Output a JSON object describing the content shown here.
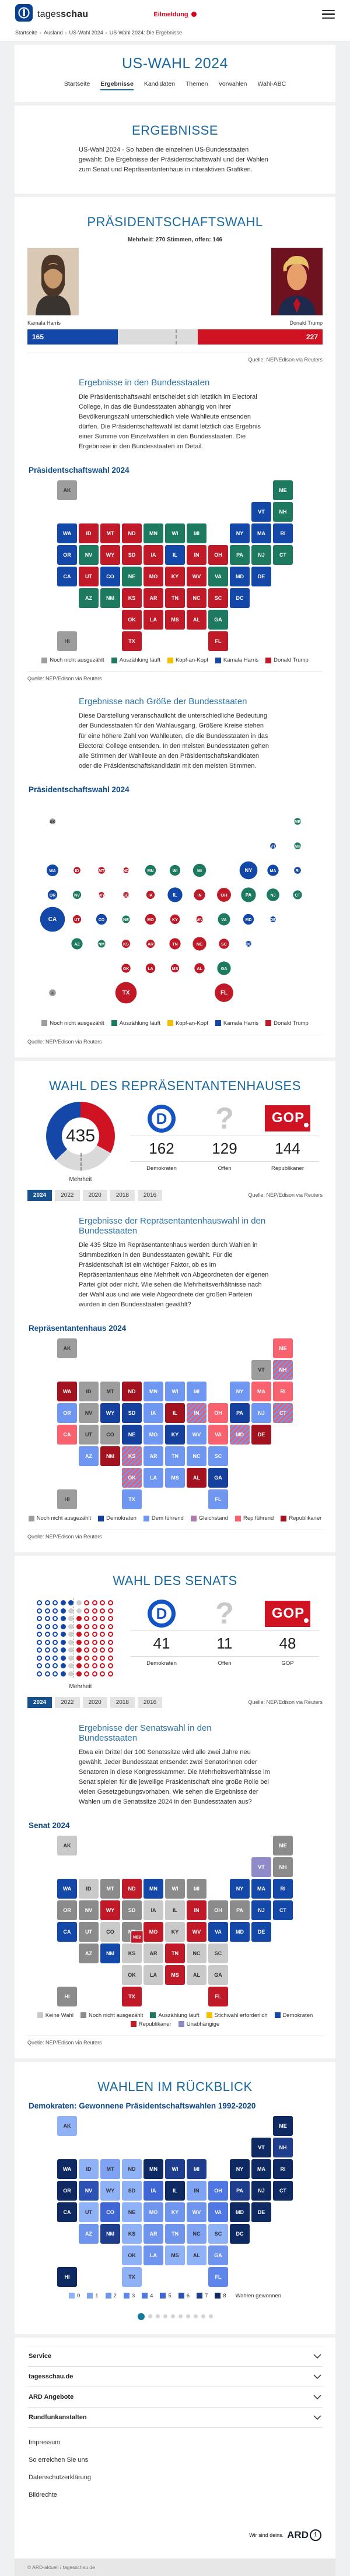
{
  "source": "Quelle: NEP/Edison via Reuters",
  "header": {
    "brand_name": "tagesschau",
    "alert_label": "Eilmeldung",
    "breadcrumb": [
      "Startseite",
      "Ausland",
      "US-Wahl 2024",
      "US-Wahl 2024: Die Ergebnisse"
    ],
    "page_title": "US-WAHL 2024",
    "tabs": [
      {
        "label": "Startseite",
        "active": false
      },
      {
        "label": "Ergebnisse",
        "active": true
      },
      {
        "label": "Kandidaten",
        "active": false
      },
      {
        "label": "Themen",
        "active": false
      },
      {
        "label": "Vorwahlen",
        "active": false
      },
      {
        "label": "Wahl-ABC",
        "active": false
      }
    ]
  },
  "intro": {
    "title": "ERGEBNISSE",
    "text": "US-Wahl 2024 - So haben die einzelnen US-Bundesstaaten gewählt: Die Ergebnisse der Präsidentschaftswahl und der Wahlen zum Senat und Repräsentantenhaus in interaktiven Grafiken."
  },
  "president": {
    "title": "PRÄSIDENTSCHAFTSWAHL",
    "subtitle": "Mehrheit: 270 Stimmen, offen: 146",
    "candidate_left": "Kamala Harris",
    "candidate_right": "Donald Trump",
    "states_section": {
      "heading": "Ergebnisse in den Bundesstaaten",
      "text": "Die Präsidentschaftswahl entscheidet sich letztlich im Electoral College, in das die Bundesstaaten abhängig von ihrer Bevölkerungszahl unterschiedlich viele Wahlleute entsenden dürfen. Die Präsidentschaftswahl ist damit letztlich das Ergebnis einer Summe von Einzelwahlen in den Bundesstaaten. Die Ergebnisse in den Bundesstaaten im Detail.",
      "map_title": "Präsidentschaftswahl 2024"
    },
    "size_section": {
      "heading": "Ergebnisse nach Größe der Bundesstaaten",
      "text": "Diese Darstellung veranschaulicht die unterschiedliche Bedeutung der Bundesstaaten für den Wahlausgang. Größere Kreise stehen für eine höhere Zahl von Wahlleuten, die die Bundesstaaten in das Electoral College entsenden. In den meisten Bundesstaaten gehen alle Stimmen der Wahlleute an den Präsidentschaftskandidaten oder die Präsidentschaftskandidatin mit den meisten Stimmen.",
      "map_title": "Präsidentschaftswahl 2024"
    }
  },
  "house": {
    "title": "WAHL DES REPRÄSENTANTENHAUSES",
    "donut_center": "435",
    "donut_label": "Mehrheit",
    "stats": [
      {
        "value": "162",
        "label": "Demokraten",
        "logo": "dem"
      },
      {
        "value": "129",
        "label": "Offen",
        "logo": "open"
      },
      {
        "value": "144",
        "label": "Republikaner",
        "logo": "gop"
      }
    ],
    "years": [
      "2024",
      "2022",
      "2020",
      "2018",
      "2016"
    ],
    "active_year": "2024",
    "states_section": {
      "heading": "Ergebnisse der Repräsentantenhauswahl in den Bundesstaaten",
      "text": "Die 435 Sitze im Repräsentantenhaus werden durch Wahlen in Stimmbezirken in den Bundesstaaten gewählt. Für die Präsidentschaft ist ein wichtiger Faktor, ob es im Repräsentantenhaus eine Mehrheit von Abgeordneten der eigenen Partei gibt oder nicht. Wie sehen die Mehrheitsverhältnisse nach der Wahl aus und wie viele Abgeordnete der großen Parteien wurden in den Bundesstaaten gewählt?",
      "map_title": "Repräsentantenhaus 2024"
    }
  },
  "senate": {
    "title": "WAHL DES SENATS",
    "majority_label": "Mehrheit",
    "stats": [
      {
        "value": "41",
        "label": "Demokraten",
        "logo": "dem"
      },
      {
        "value": "11",
        "label": "Offen",
        "logo": "open"
      },
      {
        "value": "48",
        "label": "GOP",
        "logo": "gop"
      }
    ],
    "years": [
      "2024",
      "2022",
      "2020",
      "2018",
      "2016"
    ],
    "active_year": "2024",
    "states_section": {
      "heading": "Ergebnisse der Senatswahl in den Bundesstaaten",
      "text": "Etwa ein Drittel der 100 Senatssitze wird alle zwei Jahre neu gewählt. Jeder Bundesstaat entsendet zwei Senatorinnen oder Senatoren in diese Kongresskammer. Die Mehrheitsverhältnisse im Senat spielen für die jeweilige Präsidentschaft eine große Rolle bei vielen Gesetzgebungsvorhaben. Wie sehen die Ergebnisse der Wahlen um die Senatssitze 2024 in den Bundesstaaten aus?",
      "map_title": "Senat 2024"
    }
  },
  "retro": {
    "title": "WAHLEN IM RÜCKBLICK",
    "map_title": "Demokraten: Gewonnene Präsidentschaftswahlen 1992-2020",
    "legend_suffix": "Wahlen gewonnen",
    "carousel_count": 10,
    "carousel_active": 0
  },
  "footer": {
    "accordions": [
      "Service",
      "tagesschau.de",
      "ARD Angebote",
      "Rundfunkanstalten"
    ],
    "links": [
      "Impressum",
      "So erreichen Sie uns",
      "Datenschutzerklärung",
      "Bildrechte"
    ],
    "slogan": "Wir sind deins.",
    "brand": "ARD",
    "copyright": "© ARD-aktuell / tagesschau.de"
  },
  "us_tile_grid": {
    "AK": [
      0,
      0
    ],
    "ME": [
      10,
      0
    ],
    "VT": [
      9,
      1
    ],
    "NH": [
      10,
      1
    ],
    "WA": [
      0,
      2
    ],
    "ID": [
      1,
      2
    ],
    "MT": [
      2,
      2
    ],
    "ND": [
      3,
      2
    ],
    "MN": [
      4,
      2
    ],
    "WI": [
      5,
      2
    ],
    "MI": [
      6,
      2
    ],
    "NY": [
      8,
      2
    ],
    "MA": [
      9,
      2
    ],
    "RI": [
      10,
      2
    ],
    "OR": [
      0,
      3
    ],
    "NV": [
      1,
      3
    ],
    "WY": [
      2,
      3
    ],
    "SD": [
      3,
      3
    ],
    "IA": [
      4,
      3
    ],
    "IL": [
      5,
      3
    ],
    "IN": [
      6,
      3
    ],
    "OH": [
      7,
      3
    ],
    "PA": [
      8,
      3
    ],
    "NJ": [
      9,
      3
    ],
    "CT": [
      10,
      3
    ],
    "CA": [
      0,
      4
    ],
    "UT": [
      1,
      4
    ],
    "CO": [
      2,
      4
    ],
    "NE": [
      3,
      4
    ],
    "MO": [
      4,
      4
    ],
    "KY": [
      5,
      4
    ],
    "WV": [
      6,
      4
    ],
    "VA": [
      7,
      4
    ],
    "MD": [
      8,
      4
    ],
    "DE": [
      9,
      4
    ],
    "AZ": [
      1,
      5
    ],
    "NM": [
      2,
      5
    ],
    "KS": [
      3,
      5
    ],
    "AR": [
      4,
      5
    ],
    "TN": [
      5,
      5
    ],
    "NC": [
      6,
      5
    ],
    "SC": [
      7,
      5
    ],
    "DC": [
      8,
      5
    ],
    "OK": [
      3,
      6
    ],
    "LA": [
      4,
      6
    ],
    "MS": [
      5,
      6
    ],
    "AL": [
      6,
      6
    ],
    "GA": [
      7,
      6
    ],
    "HI": [
      0,
      7
    ],
    "TX": [
      3,
      7
    ],
    "FL": [
      7,
      7
    ]
  },
  "chart_data": [
    {
      "id": "president_bar",
      "type": "bar",
      "title": "PRÄSIDENTSCHAFTSWAHL",
      "total": 538,
      "majority": 270,
      "open": 146,
      "series": [
        {
          "name": "Kamala Harris",
          "value": 165,
          "color": "#1347a8"
        },
        {
          "name": "offen",
          "value": 146,
          "color": "#dcdcdc"
        },
        {
          "name": "Donald Trump",
          "value": 227,
          "color": "#cf1322"
        }
      ]
    },
    {
      "id": "president_map",
      "type": "choropleth_tile",
      "title": "Präsidentschaftswahl 2024",
      "categories": {
        "not_counted": {
          "label": "Noch nicht ausgezählt",
          "color": "#9d9d9d"
        },
        "counting": {
          "label": "Auszählung läuft",
          "color": "#1d7a60"
        },
        "tossup": {
          "label": "Kopf-an-Kopf",
          "color": "#f3c000"
        },
        "harris": {
          "label": "Kamala Harris",
          "color": "#1347a8"
        },
        "trump": {
          "label": "Donald Trump",
          "color": "#c01a28"
        }
      },
      "legend_order": [
        "not_counted",
        "counting",
        "tossup",
        "harris",
        "trump"
      ],
      "states": {
        "AK": "not_counted",
        "HI": "not_counted",
        "WA": "harris",
        "OR": "harris",
        "CA": "harris",
        "CO": "harris",
        "IL": "harris",
        "NY": "harris",
        "VT": "harris",
        "MA": "harris",
        "RI": "harris",
        "DE": "harris",
        "MD": "harris",
        "DC": "harris",
        "NV": "counting",
        "AZ": "counting",
        "NM": "counting",
        "NE": "counting",
        "MN": "counting",
        "WI": "counting",
        "MI": "counting",
        "PA": "counting",
        "GA": "counting",
        "VA": "counting",
        "ME": "counting",
        "NH": "counting",
        "CT": "counting",
        "NJ": "counting",
        "ID": "trump",
        "MT": "trump",
        "WY": "trump",
        "ND": "trump",
        "SD": "trump",
        "UT": "trump",
        "KS": "trump",
        "OK": "trump",
        "TX": "trump",
        "IA": "trump",
        "MO": "trump",
        "AR": "trump",
        "LA": "trump",
        "IN": "trump",
        "OH": "trump",
        "KY": "trump",
        "TN": "trump",
        "MS": "trump",
        "AL": "trump",
        "FL": "trump",
        "SC": "trump",
        "NC": "trump",
        "WV": "trump"
      }
    },
    {
      "id": "president_bubbles",
      "type": "bubble",
      "title": "Präsidentschaftswahl 2024",
      "uses_states_of": "president_map",
      "size_meaning": "Wahlleute (Electoral College)",
      "electoral_votes": {
        "AL": 9,
        "AK": 3,
        "AZ": 11,
        "AR": 6,
        "CA": 54,
        "CO": 10,
        "CT": 7,
        "DE": 3,
        "DC": 3,
        "FL": 30,
        "GA": 16,
        "HI": 4,
        "ID": 4,
        "IL": 19,
        "IN": 11,
        "IA": 6,
        "KS": 6,
        "KY": 8,
        "LA": 8,
        "ME": 4,
        "MD": 10,
        "MA": 11,
        "MI": 15,
        "MN": 10,
        "MS": 6,
        "MO": 10,
        "MT": 4,
        "NE": 5,
        "NV": 6,
        "NH": 4,
        "NJ": 14,
        "NM": 5,
        "NY": 28,
        "NC": 16,
        "ND": 3,
        "OH": 17,
        "OK": 7,
        "OR": 8,
        "PA": 19,
        "RI": 4,
        "SC": 9,
        "SD": 3,
        "TN": 11,
        "TX": 40,
        "UT": 6,
        "VT": 3,
        "VA": 13,
        "WA": 12,
        "WV": 4,
        "WI": 10,
        "WY": 3
      }
    },
    {
      "id": "house_donut",
      "type": "donut",
      "total": 435,
      "center_label": "Mehrheit",
      "slices": [
        {
          "name": "Republikaner",
          "value": 144,
          "color": "#cf1322"
        },
        {
          "name": "Offen",
          "value": 129,
          "color": "#d9d9d9"
        },
        {
          "name": "Demokraten",
          "value": 162,
          "color": "#1347a8"
        }
      ]
    },
    {
      "id": "house_map",
      "type": "choropleth_tile",
      "title": "Repräsentantenhaus 2024",
      "categories": {
        "not_counted": {
          "label": "Noch nicht ausgezählt",
          "color": "#9d9d9d"
        },
        "dem": {
          "label": "Demokraten",
          "color": "#15409d"
        },
        "dem_lead": {
          "label": "Dem führend",
          "color": "#6f96f0"
        },
        "tie": {
          "label": "Gleichstand",
          "color": "stripes"
        },
        "rep_lead": {
          "label": "Rep führend",
          "color": "#f8626e"
        },
        "rep": {
          "label": "Republikaner",
          "color": "#a3121f"
        }
      },
      "legend_order": [
        "not_counted",
        "dem",
        "dem_lead",
        "tie",
        "rep_lead",
        "rep"
      ],
      "states": {
        "WA": "rep",
        "ND": "rep",
        "NM": "rep",
        "IL": "rep",
        "AL": "rep",
        "DE": "rep",
        "WY": "dem",
        "SD": "dem",
        "NE": "dem",
        "KY": "dem",
        "GA": "dem",
        "PA": "dem",
        "OR": "dem_lead",
        "AZ": "dem_lead",
        "TX": "dem_lead",
        "MN": "dem_lead",
        "IA": "dem_lead",
        "MO": "dem_lead",
        "AR": "dem_lead",
        "LA": "dem_lead",
        "WI": "dem_lead",
        "MI": "dem_lead",
        "TN": "dem_lead",
        "MS": "dem_lead",
        "FL": "dem_lead",
        "SC": "dem_lead",
        "NC": "dem_lead",
        "WV": "dem_lead",
        "NY": "dem_lead",
        "NJ": "dem_lead",
        "KS": "tie",
        "OK": "tie",
        "IN": "tie",
        "NH": "tie",
        "CT": "tie",
        "MD": "tie",
        "CA": "rep_lead",
        "OH": "rep_lead",
        "VA": "rep_lead",
        "ME": "rep_lead",
        "MA": "rep_lead",
        "RI": "rep_lead",
        "ID": "not_counted",
        "MT": "not_counted",
        "NV": "not_counted",
        "UT": "not_counted",
        "CO": "not_counted",
        "VT": "not_counted",
        "AK": "not_counted",
        "HI": "not_counted"
      }
    },
    {
      "id": "senate_dots",
      "type": "seat_dots",
      "rows": [
        "bbbBBgrrrr",
        "bbbBggrrrr",
        "bbbBgRrrrr",
        "bbbBgRrrrr",
        "bbbBgRrrrr",
        "bbbBgRrrrr",
        "bbbBgRrrrr",
        "bbbBgRrrrr",
        "bbbBgRrrrr",
        "bbbBgRrrrr"
      ],
      "key": {
        "b": "Demokraten (nicht zur Wahl)",
        "B": "Demokraten gewählt",
        "g": "Offen",
        "R": "Republikaner gewählt",
        "r": "Republikaner (nicht zur Wahl)"
      },
      "counts": {
        "Demokraten": 41,
        "Offen": 11,
        "GOP": 48
      },
      "majority_label": "Mehrheit"
    },
    {
      "id": "senate_map",
      "type": "choropleth_tile",
      "title": "Senat 2024",
      "categories": {
        "no_election": {
          "label": "Keine Wahl",
          "color": "#c9c9c9"
        },
        "not_counted": {
          "label": "Noch nicht ausgezählt",
          "color": "#8b8b8b"
        },
        "counting": {
          "label": "Auszählung läuft",
          "color": "#1d7a60"
        },
        "runoff": {
          "label": "Stichwahl erforderlich",
          "color": "#f3c000"
        },
        "dem": {
          "label": "Demokraten",
          "color": "#1347a8"
        },
        "rep": {
          "label": "Republikaner",
          "color": "#c01a28"
        },
        "ind": {
          "label": "Unabhängige",
          "color": "#8f8bc9"
        }
      },
      "legend_order": [
        "no_election",
        "not_counted",
        "counting",
        "runoff",
        "dem",
        "rep",
        "ind"
      ],
      "states": {
        "WA": "dem",
        "CA": "dem",
        "NM": "dem",
        "MN": "dem",
        "VA": "dem",
        "NY": "dem",
        "NJ": "dem",
        "MA": "dem",
        "CT": "dem",
        "RI": "dem",
        "DE": "dem",
        "MD": "dem",
        "WY": "rep",
        "ND": "rep",
        "TX": "rep",
        "MO": "rep",
        "IN": "rep",
        "TN": "rep",
        "MS": "rep",
        "WV": "rep",
        "FL": "rep",
        "VT": "ind",
        "OR": "not_counted",
        "NV": "not_counted",
        "MT": "not_counted",
        "SD": "not_counted",
        "UT": "not_counted",
        "AZ": "not_counted",
        "WI": "not_counted",
        "MI": "not_counted",
        "OH": "not_counted",
        "PA": "not_counted",
        "ME": "not_counted",
        "NH": "not_counted",
        "HI": "not_counted",
        "NE": "not_counted",
        "ID": "no_election",
        "CO": "no_election",
        "KS": "no_election",
        "OK": "no_election",
        "IA": "no_election",
        "AR": "no_election",
        "LA": "no_election",
        "IL": "no_election",
        "KY": "no_election",
        "AL": "no_election",
        "GA": "no_election",
        "SC": "no_election",
        "NC": "no_election",
        "AK": "no_election"
      },
      "extra": [
        {
          "state": "NE2",
          "category": "rep"
        }
      ]
    },
    {
      "id": "retro_map",
      "type": "choropleth_tile_values",
      "title": "Demokraten: Gewonnene Präsidentschaftswahlen 1992-2020",
      "palette": [
        "#8fb1f5",
        "#7fa3f2",
        "#6f94ee",
        "#5f86ea",
        "#4f77e3",
        "#3f66d4",
        "#2e52b4",
        "#1e3d8d",
        "#0f2a62"
      ],
      "legend_labels": [
        "0",
        "1",
        "2",
        "3",
        "4",
        "5",
        "6",
        "7",
        "8"
      ],
      "legend_suffix": "Wahlen gewonnen",
      "values": {
        "WA": 8,
        "OR": 8,
        "CA": 8,
        "MN": 8,
        "IL": 8,
        "ME": 8,
        "NY": 8,
        "NJ": 8,
        "MD": 8,
        "DE": 8,
        "RI": 8,
        "MA": 8,
        "CT": 8,
        "VT": 8,
        "HI": 8,
        "DC": 8,
        "MI": 7,
        "WI": 7,
        "PA": 7,
        "NH": 7,
        "NM": 7,
        "NV": 6,
        "IA": 5,
        "CO": 5,
        "OH": 4,
        "VA": 4,
        "FL": 3,
        "GA": 2,
        "MO": 2,
        "KY": 2,
        "TN": 2,
        "AR": 2,
        "LA": 2,
        "WV": 2,
        "AZ": 2,
        "NC": 1,
        "IN": 1,
        "MT": 1,
        "ID": 0,
        "UT": 0,
        "WY": 0,
        "ND": 0,
        "SD": 0,
        "NE": 0,
        "KS": 0,
        "OK": 0,
        "TX": 0,
        "MS": 0,
        "AL": 0,
        "SC": 0,
        "AK": 0
      }
    }
  ]
}
